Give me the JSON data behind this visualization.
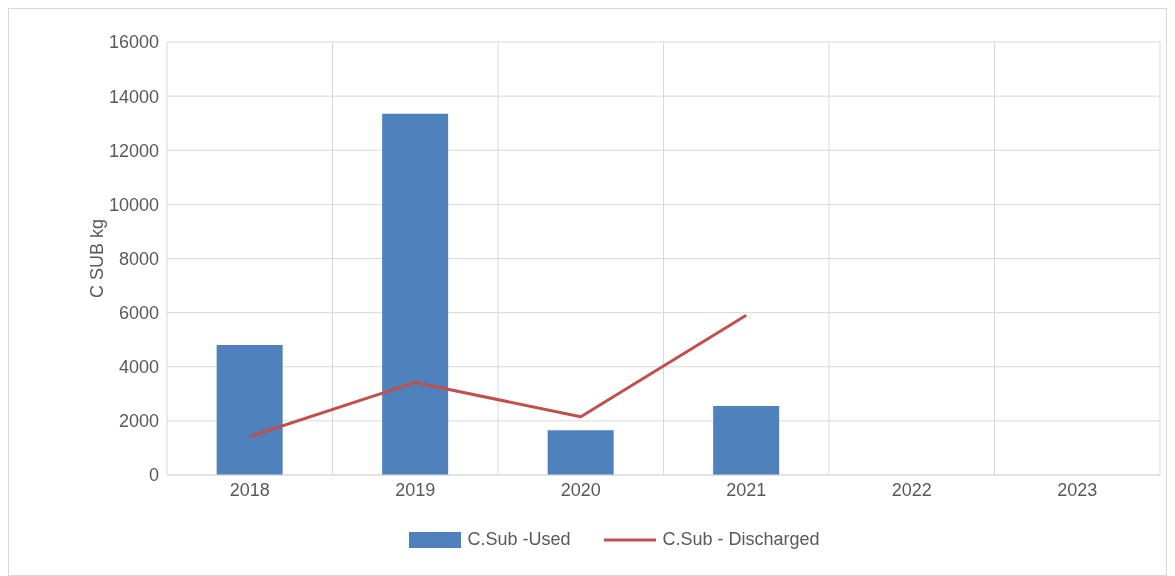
{
  "chart_data": {
    "type": "bar",
    "ylabel": "C SUB kg",
    "categories": [
      "2018",
      "2019",
      "2020",
      "2021",
      "2022",
      "2023"
    ],
    "series": [
      {
        "name": "C.Sub -Used",
        "color": "#4f81bd",
        "values": [
          4800,
          13350,
          1650,
          2550,
          null,
          null
        ]
      },
      {
        "name": "C.Sub - Discharged",
        "type": "line",
        "color": "#c0504d",
        "values": [
          1420,
          3420,
          2150,
          5900,
          null,
          null
        ]
      }
    ],
    "ylim": [
      0,
      16000
    ],
    "yticks": [
      0,
      2000,
      4000,
      6000,
      8000,
      10000,
      12000,
      14000,
      16000
    ],
    "grid": true,
    "legend": "bottom",
    "marker": "none",
    "line_style": "solid"
  }
}
